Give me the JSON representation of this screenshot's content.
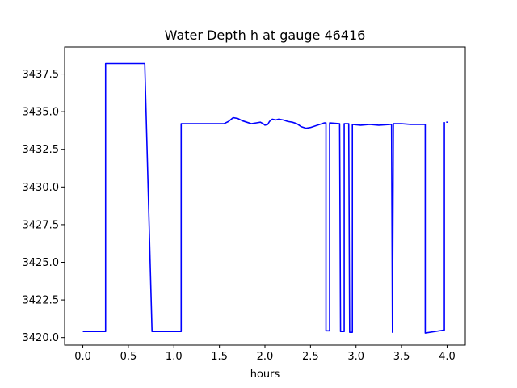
{
  "chart_data": {
    "type": "line",
    "title": "Water Depth h at gauge 46416",
    "xlabel": "hours",
    "ylabel": "",
    "xlim": [
      -0.2,
      4.2
    ],
    "ylim": [
      3419.5,
      3439.3
    ],
    "grid": false,
    "legend": "none",
    "xticks": [
      0.0,
      0.5,
      1.0,
      1.5,
      2.0,
      2.5,
      3.0,
      3.5,
      4.0
    ],
    "xtick_labels": [
      "0.0",
      "0.5",
      "1.0",
      "1.5",
      "2.0",
      "2.5",
      "3.0",
      "3.5",
      "4.0"
    ],
    "yticks": [
      3420.0,
      3422.5,
      3425.0,
      3427.5,
      3430.0,
      3432.5,
      3435.0,
      3437.5
    ],
    "ytick_labels": [
      "3420.0",
      "3422.5",
      "3425.0",
      "3427.5",
      "3430.0",
      "3432.5",
      "3435.0",
      "3437.5"
    ],
    "series": [
      {
        "color": "#0000ff",
        "segments": [
          [
            [
              0.0,
              3420.4
            ],
            [
              0.25,
              3420.4
            ],
            [
              0.25,
              3438.2
            ],
            [
              0.68,
              3438.2
            ],
            [
              0.76,
              3420.4
            ],
            [
              1.08,
              3420.4
            ],
            [
              1.08,
              3434.2
            ],
            [
              1.55,
              3434.2
            ],
            [
              1.6,
              3434.35
            ],
            [
              1.65,
              3434.6
            ],
            [
              1.7,
              3434.55
            ],
            [
              1.75,
              3434.4
            ],
            [
              1.8,
              3434.3
            ],
            [
              1.85,
              3434.2
            ],
            [
              1.9,
              3434.25
            ],
            [
              1.95,
              3434.3
            ],
            [
              1.98,
              3434.2
            ],
            [
              2.0,
              3434.1
            ],
            [
              2.03,
              3434.15
            ],
            [
              2.05,
              3434.35
            ],
            [
              2.08,
              3434.5
            ],
            [
              2.12,
              3434.45
            ],
            [
              2.15,
              3434.5
            ],
            [
              2.2,
              3434.45
            ],
            [
              2.25,
              3434.35
            ],
            [
              2.3,
              3434.3
            ],
            [
              2.35,
              3434.2
            ],
            [
              2.4,
              3434.0
            ],
            [
              2.45,
              3433.9
            ],
            [
              2.5,
              3433.95
            ],
            [
              2.55,
              3434.05
            ],
            [
              2.6,
              3434.15
            ],
            [
              2.65,
              3434.25
            ],
            [
              2.67,
              3434.25
            ],
            [
              2.67,
              3420.45
            ],
            [
              2.71,
              3420.45
            ],
            [
              2.71,
              3434.25
            ],
            [
              2.82,
              3434.2
            ],
            [
              2.83,
              3420.4
            ],
            [
              2.87,
              3420.4
            ],
            [
              2.87,
              3434.2
            ],
            [
              2.92,
              3434.2
            ],
            [
              2.93,
              3420.35
            ],
            [
              2.96,
              3420.35
            ],
            [
              2.96,
              3434.15
            ],
            [
              3.05,
              3434.1
            ],
            [
              3.15,
              3434.15
            ],
            [
              3.25,
              3434.1
            ],
            [
              3.38,
              3434.15
            ],
            [
              3.39,
              3434.15
            ],
            [
              3.4,
              3420.35
            ],
            [
              3.41,
              3434.2
            ],
            [
              3.5,
              3434.2
            ],
            [
              3.6,
              3434.15
            ],
            [
              3.7,
              3434.15
            ],
            [
              3.76,
              3434.15
            ],
            [
              3.76,
              3420.3
            ],
            [
              3.97,
              3420.5
            ],
            [
              3.97,
              3434.3
            ]
          ],
          [
            [
              3.99,
              3434.3
            ],
            [
              4.01,
              3434.3
            ]
          ]
        ]
      }
    ]
  }
}
